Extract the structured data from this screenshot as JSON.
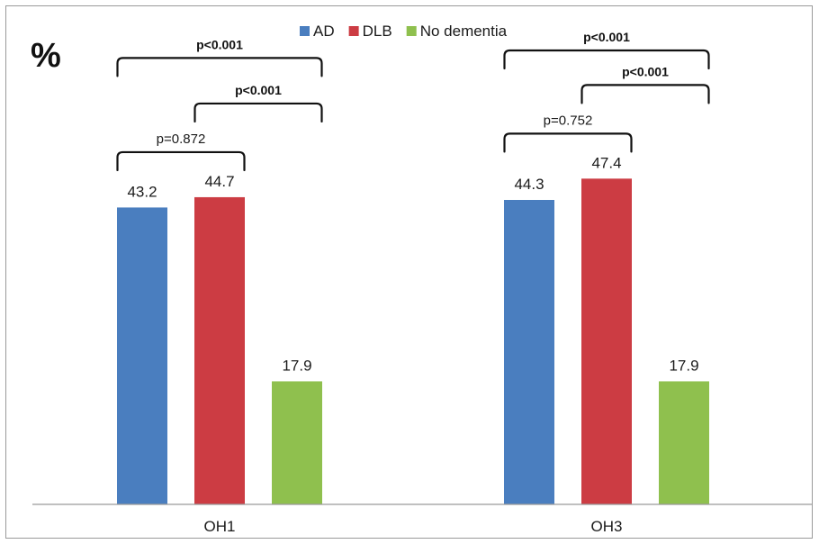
{
  "chart_data": {
    "type": "bar",
    "y_unit": "%",
    "categories": [
      "OH1",
      "OH3"
    ],
    "series": [
      {
        "name": "AD",
        "color": "#4a7ebf",
        "values": [
          43.2,
          44.3
        ],
        "labels": [
          "43.2",
          "44.3"
        ]
      },
      {
        "name": "DLB",
        "color": "#cc3c43",
        "values": [
          44.7,
          47.4
        ],
        "labels": [
          "44.7",
          "47.4"
        ]
      },
      {
        "name": "No dementia",
        "color": "#8fc04e",
        "values": [
          17.9,
          17.9
        ],
        "labels": [
          "17.9",
          "17.9"
        ]
      }
    ],
    "ylim": [
      0,
      56
    ],
    "grid": false,
    "legend_position": "top",
    "comparisons": [
      {
        "category": "OH1",
        "from": "AD",
        "to": "No dementia",
        "label": "p<0.001",
        "bold": true
      },
      {
        "category": "OH1",
        "from": "DLB",
        "to": "No dementia",
        "label": "p<0.001",
        "bold": true
      },
      {
        "category": "OH1",
        "from": "AD",
        "to": "DLB",
        "label": "p=0.872",
        "bold": false
      },
      {
        "category": "OH3",
        "from": "AD",
        "to": "No dementia",
        "label": "p<0.001",
        "bold": true
      },
      {
        "category": "OH3",
        "from": "DLB",
        "to": "No dementia",
        "label": "p<0.001",
        "bold": true
      },
      {
        "category": "OH3",
        "from": "AD",
        "to": "DLB",
        "label": "p=0.752",
        "bold": false
      }
    ]
  }
}
